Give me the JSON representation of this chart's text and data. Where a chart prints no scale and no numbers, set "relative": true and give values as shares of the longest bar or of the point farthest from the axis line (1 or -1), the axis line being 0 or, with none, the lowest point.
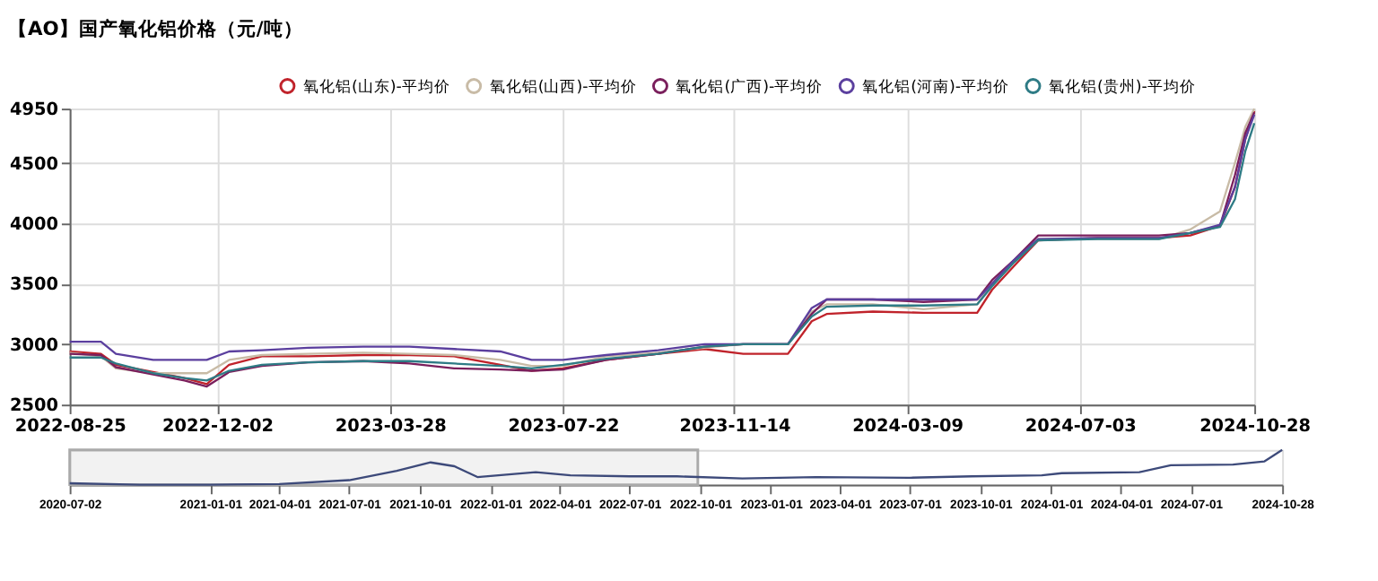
{
  "chart_data": [
    {
      "type": "line",
      "title": "【AO】国产氧化铝价格（元/吨）",
      "x": [
        "2022-08-25",
        "2022-09-15",
        "2022-09-25",
        "2022-10-20",
        "2022-11-10",
        "2022-11-25",
        "2022-12-10",
        "2023-01-01",
        "2023-02-01",
        "2023-03-10",
        "2023-04-10",
        "2023-05-10",
        "2023-06-10",
        "2023-07-01",
        "2023-07-22",
        "2023-08-20",
        "2023-09-24",
        "2023-10-25",
        "2023-11-20",
        "2023-12-20",
        "2024-01-05",
        "2024-01-15",
        "2024-02-15",
        "2024-03-20",
        "2024-04-25",
        "2024-05-05",
        "2024-05-20",
        "2024-06-05",
        "2024-07-15",
        "2024-08-25",
        "2024-09-15",
        "2024-10-05",
        "2024-10-15",
        "2024-10-22",
        "2024-10-28"
      ],
      "series": [
        {
          "name": "氧化铝(山东)-平均价",
          "color": "#c0232b",
          "values": [
            2940,
            2920,
            2830,
            2770,
            2720,
            2670,
            2830,
            2900,
            2900,
            2910,
            2910,
            2900,
            2830,
            2780,
            2800,
            2870,
            2920,
            2960,
            2920,
            2920,
            3190,
            3250,
            3270,
            3260,
            3260,
            3450,
            3650,
            3860,
            3880,
            3880,
            3900,
            3980,
            4300,
            4700,
            4930
          ]
        },
        {
          "name": "氧化铝(山西)-平均价",
          "color": "#c8bba6",
          "values": [
            2930,
            2900,
            2800,
            2760,
            2760,
            2760,
            2870,
            2910,
            2920,
            2930,
            2920,
            2910,
            2870,
            2820,
            2820,
            2900,
            2930,
            2970,
            3000,
            3000,
            3270,
            3330,
            3330,
            3290,
            3330,
            3500,
            3700,
            3870,
            3870,
            3870,
            3950,
            4100,
            4500,
            4800,
            4950
          ]
        },
        {
          "name": "氧化铝(广西)-平均价",
          "color": "#7a1f5c",
          "values": [
            2920,
            2910,
            2810,
            2750,
            2700,
            2650,
            2770,
            2820,
            2850,
            2860,
            2840,
            2800,
            2790,
            2780,
            2790,
            2870,
            2920,
            2980,
            3000,
            3000,
            3250,
            3370,
            3370,
            3350,
            3370,
            3530,
            3700,
            3900,
            3900,
            3900,
            3920,
            3980,
            4400,
            4750,
            4920
          ]
        },
        {
          "name": "氧化铝(河南)-平均价",
          "color": "#5b3f9e",
          "values": [
            3020,
            3020,
            2920,
            2870,
            2870,
            2870,
            2940,
            2950,
            2970,
            2980,
            2980,
            2960,
            2940,
            2870,
            2870,
            2910,
            2950,
            3000,
            3000,
            3000,
            3300,
            3370,
            3370,
            3370,
            3370,
            3500,
            3700,
            3870,
            3880,
            3880,
            3920,
            3990,
            4300,
            4700,
            4900
          ]
        },
        {
          "name": "氧化铝(贵州)-平均价",
          "color": "#2e7b85",
          "values": [
            2890,
            2890,
            2840,
            2760,
            2720,
            2700,
            2780,
            2830,
            2850,
            2860,
            2860,
            2840,
            2820,
            2800,
            2830,
            2880,
            2920,
            2980,
            3000,
            3000,
            3230,
            3310,
            3320,
            3320,
            3330,
            3480,
            3680,
            3860,
            3870,
            3870,
            3920,
            3970,
            4200,
            4600,
            4830
          ]
        }
      ],
      "xlim": [
        "2022-08-25",
        "2024-10-28"
      ],
      "xticks": [
        "2022-08-25",
        "2022-12-02",
        "2023-03-28",
        "2023-07-22",
        "2023-11-14",
        "2024-03-09",
        "2024-07-03",
        "2024-10-28"
      ],
      "ylim": [
        2500,
        4950
      ],
      "yticks": [
        2500,
        3000,
        3500,
        4000,
        4500,
        4950
      ],
      "grid": true,
      "legend": "top right",
      "marker": "none",
      "line_style": "solid"
    },
    {
      "type": "line",
      "relative": true,
      "x": [
        "2020-07-02",
        "2020-10-01",
        "2021-01-01",
        "2021-04-01",
        "2021-07-01",
        "2021-09-01",
        "2021-10-15",
        "2021-11-15",
        "2021-12-15",
        "2022-02-01",
        "2022-03-01",
        "2022-04-15",
        "2022-07-01",
        "2022-09-01",
        "2022-11-25",
        "2023-03-01",
        "2023-07-01",
        "2023-09-20",
        "2023-12-20",
        "2024-01-15",
        "2024-04-25",
        "2024-06-05",
        "2024-08-25",
        "2024-10-05",
        "2024-10-28"
      ],
      "series": [
        {
          "color": "#3d4a7a",
          "values": [
            0.04,
            0,
            0,
            0.02,
            0.13,
            0.4,
            0.64,
            0.53,
            0.22,
            0.31,
            0.36,
            0.27,
            0.24,
            0.24,
            0.18,
            0.22,
            0.2,
            0.24,
            0.27,
            0.33,
            0.36,
            0.56,
            0.58,
            0.67,
            1
          ]
        }
      ],
      "xlim": [
        "2020-07-02",
        "2024-10-28"
      ],
      "xticks": [
        "2020-07-02",
        "2021-01-01",
        "2021-04-01",
        "2021-07-01",
        "2021-10-01",
        "2022-01-01",
        "2022-04-01",
        "2022-07-01",
        "2022-10-01",
        "2023-01-01",
        "2023-04-01",
        "2023-07-01",
        "2023-10-01",
        "2024-01-01",
        "2024-04-01",
        "2024-07-01",
        "2024-10-28"
      ],
      "bands": [
        {
          "axis": "x",
          "from": "2020-07-02",
          "to": "2022-09-28",
          "color": "#aaaaaa"
        }
      ],
      "grid": false,
      "legend": false,
      "marker": "none",
      "line_style": "solid"
    }
  ]
}
